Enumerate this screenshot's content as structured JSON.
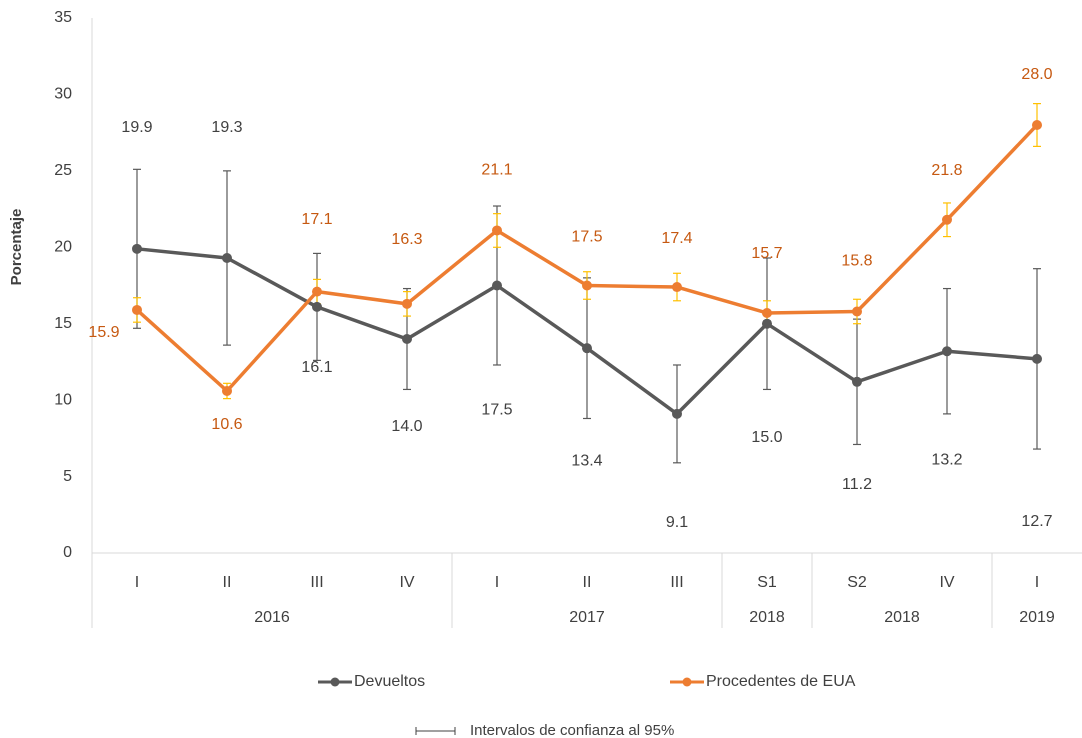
{
  "chart_data": {
    "type": "line",
    "y_label": "Porcentaje",
    "groups": [
      {
        "name": "2016",
        "categories": [
          "I",
          "II",
          "III",
          "IV"
        ]
      },
      {
        "name": "2017",
        "categories": [
          "I",
          "II",
          "III"
        ]
      },
      {
        "name": "2018",
        "categories": [
          "S1"
        ]
      },
      {
        "name": "2018",
        "categories": [
          "S2",
          "IV"
        ]
      },
      {
        "name": "2019",
        "categories": [
          "I"
        ]
      }
    ],
    "series": [
      {
        "name": "Devueltos",
        "color": "#595959",
        "error_color": "#595959",
        "label_color": "#404040",
        "values": [
          19.9,
          19.3,
          16.1,
          14.0,
          17.5,
          13.4,
          9.1,
          15.0,
          11.2,
          13.2,
          12.7
        ],
        "value_labels": [
          "19.9",
          "19.3",
          "16.1",
          "14.0",
          "17.5",
          "13.4",
          "9.1",
          "15.0",
          "11.2",
          "13.2",
          "12.7"
        ],
        "errors": [
          5.2,
          5.7,
          3.5,
          3.3,
          5.2,
          4.6,
          3.2,
          4.3,
          4.1,
          4.1,
          5.9
        ]
      },
      {
        "name": "Procedentes de EUA",
        "color": "#ed7d31",
        "error_color": "#ffc000",
        "label_color": "#c65911",
        "values": [
          15.9,
          10.6,
          17.1,
          16.3,
          21.1,
          17.5,
          17.4,
          15.7,
          15.8,
          21.8,
          28.0
        ],
        "value_labels": [
          "15.9",
          "10.6",
          "17.1",
          "16.3",
          "21.1",
          "17.5",
          "17.4",
          "15.7",
          "15.8",
          "21.8",
          "28.0"
        ],
        "errors": [
          0.8,
          0.5,
          0.8,
          0.8,
          1.1,
          0.9,
          0.9,
          0.8,
          0.8,
          1.1,
          1.4
        ]
      }
    ],
    "ylim": [
      0,
      35
    ],
    "yticks": [
      0,
      5,
      10,
      15,
      20,
      25,
      30,
      35
    ],
    "grid": false,
    "legend": "bottom",
    "note": "Intervalos de confianza al 95%"
  }
}
